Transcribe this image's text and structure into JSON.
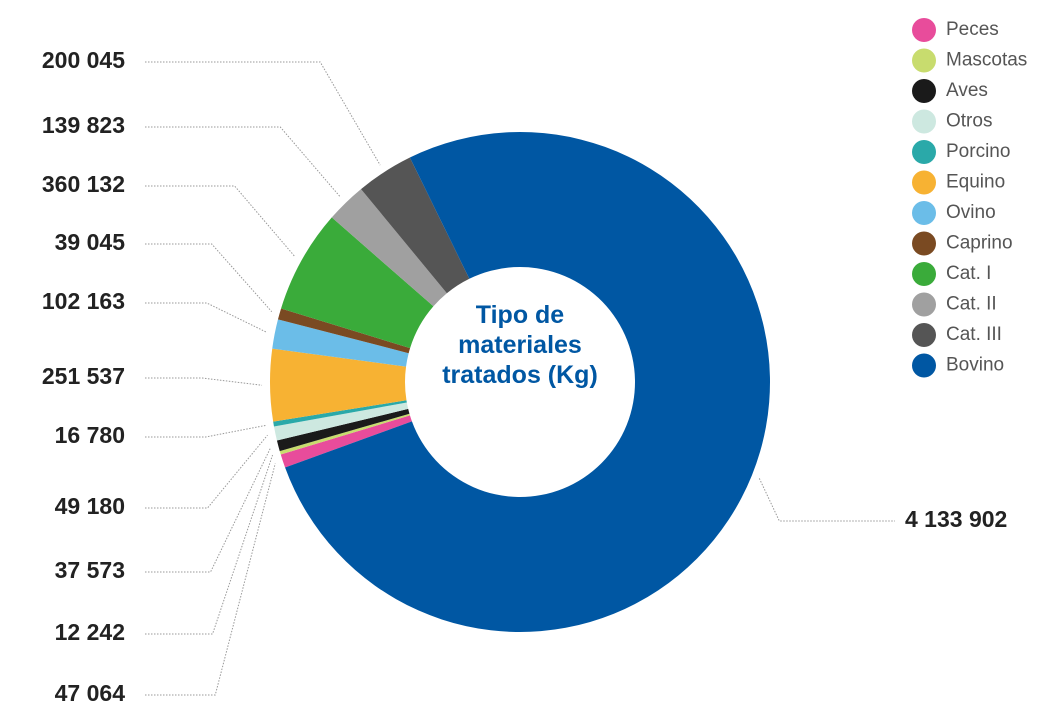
{
  "chart_data": {
    "type": "donut",
    "title": "Tipo de materiales tratados (Kg)",
    "categories": [
      "Peces",
      "Mascotas",
      "Aves",
      "Otros",
      "Porcino",
      "Equino",
      "Ovino",
      "Caprino",
      "Cat. I",
      "Cat. II",
      "Cat. III",
      "Bovino"
    ],
    "values": [
      47064,
      12242,
      37573,
      49180,
      16780,
      251537,
      102163,
      39045,
      360132,
      139823,
      200045,
      4133902
    ],
    "value_labels": [
      "47 064",
      "12 242",
      "37 573",
      "49 180",
      "16 780",
      "251 537",
      "102 163",
      "39 045",
      "360 132",
      "139 823",
      "200 045",
      "4 133 902"
    ],
    "colors": [
      "#e84c9b",
      "#c8dc6e",
      "#1a1a1a",
      "#cde8e0",
      "#2aa9a9",
      "#f7b233",
      "#6bbde8",
      "#7a4a22",
      "#3aab3a",
      "#a0a0a0",
      "#555555",
      "#0057a3"
    ],
    "legend": "top-right"
  }
}
